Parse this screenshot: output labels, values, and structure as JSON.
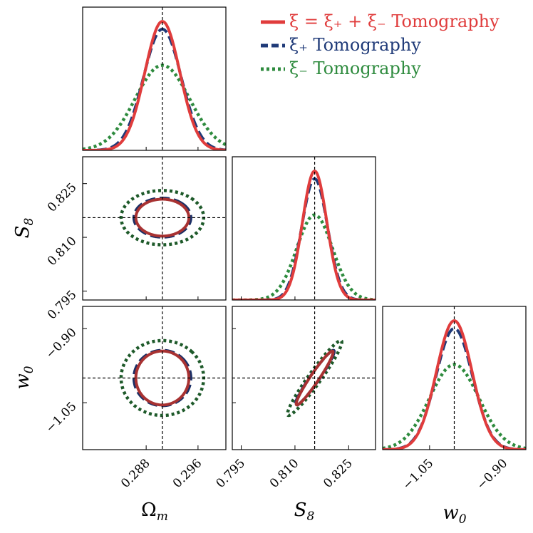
{
  "chart_data": {
    "type": "corner-plot",
    "parameters": [
      "Ω_m",
      "S₈",
      "w₀"
    ],
    "axis_labels": {
      "omega_m": "Ω",
      "omega_m_sub": "m",
      "s8": "S",
      "s8_sub": "8",
      "w0": "w",
      "w0_sub": "0"
    },
    "fiducial": {
      "omega_m": 0.2905,
      "s8": 0.8155,
      "w0": -1.0
    },
    "ranges": {
      "omega_m": [
        0.2782,
        0.3003
      ],
      "s8": [
        0.7925,
        0.8325
      ],
      "w0": [
        -1.145,
        -0.855
      ]
    },
    "ticks": {
      "omega_m": {
        "values": [
          0.288,
          0.296
        ],
        "labels": [
          "0.288",
          "0.296"
        ]
      },
      "s8": {
        "values": [
          0.795,
          0.81,
          0.825
        ],
        "labels": [
          "0.795",
          "0.810",
          "0.825"
        ]
      },
      "w0": {
        "values": [
          -1.05,
          -0.9
        ],
        "labels": [
          "−1.05",
          "−0.90"
        ]
      }
    },
    "series": [
      {
        "name": "combined",
        "label": "ξ = ξ₊ + ξ₋ Tomography",
        "color": "#e03c3c",
        "contour_color": "#a83232",
        "sigma": {
          "omega_m": 0.0027,
          "s8": 0.0034,
          "w0": 0.036
        },
        "corr": {
          "s8_omega_m": 0.0,
          "w0_omega_m": 0.0,
          "w0_s8": 0.96
        },
        "peak_scale": 1.0
      },
      {
        "name": "xi_plus",
        "label": "ξ₊ Tomography",
        "color": "#1f3a78",
        "contour_color": "#1a2f66",
        "sigma": {
          "omega_m": 0.0029,
          "s8": 0.0036,
          "w0": 0.037
        },
        "corr": {
          "s8_omega_m": 0.0,
          "w0_omega_m": 0.0,
          "w0_s8": 0.96
        },
        "peak_scale": 0.94
      },
      {
        "name": "xi_minus",
        "label": "ξ₋ Tomography",
        "color": "#2e8b3e",
        "contour_color": "#1e5a2a",
        "sigma": {
          "omega_m": 0.0042,
          "s8": 0.005,
          "w0": 0.05
        },
        "corr": {
          "s8_omega_m": 0.0,
          "w0_omega_m": 0.0,
          "w0_s8": 0.96
        },
        "peak_scale": 0.66
      }
    ],
    "legend": {
      "position": "top-right",
      "entries": [
        "ξ = ξ₊ + ξ₋ Tomography",
        "ξ₊ Tomography",
        "ξ₋ Tomography"
      ]
    }
  }
}
